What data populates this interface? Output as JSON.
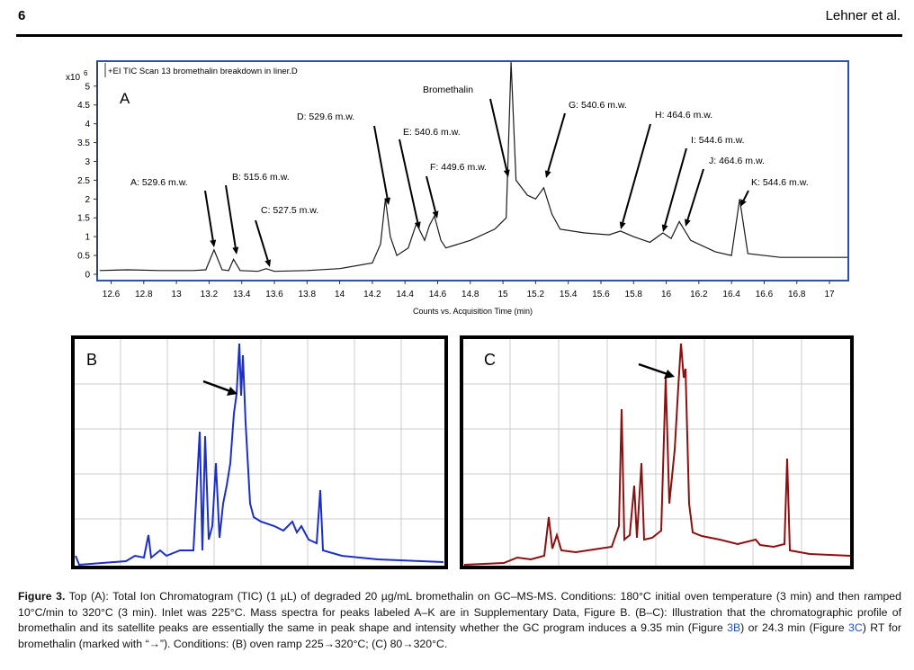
{
  "header": {
    "page": "6",
    "authors": "Lehner et al."
  },
  "chart_data": {
    "type": "line",
    "title": "+EI TIC Scan 13 bromethalin breakdown in liner.D",
    "panel": "A",
    "x_label": "Counts vs. Acquisition Time (min)",
    "y_unit_base": "x10",
    "y_unit_exp": "6",
    "x": [
      12.53,
      12.7,
      12.9,
      13.1,
      13.18,
      13.23,
      13.28,
      13.32,
      13.35,
      13.39,
      13.5,
      13.55,
      13.6,
      13.8,
      14.0,
      14.2,
      14.25,
      14.28,
      14.31,
      14.35,
      14.42,
      14.47,
      14.52,
      14.55,
      14.58,
      14.62,
      14.65,
      14.8,
      14.95,
      15.02,
      15.05,
      15.08,
      15.15,
      15.2,
      15.25,
      15.3,
      15.35,
      15.5,
      15.65,
      15.72,
      15.8,
      15.9,
      15.98,
      16.03,
      16.08,
      16.15,
      16.3,
      16.4,
      16.45,
      16.5,
      16.7,
      16.9,
      17.11
    ],
    "series": [
      {
        "name": "TIC",
        "color": "#1a1a1a",
        "values": [
          0.1,
          0.12,
          0.1,
          0.1,
          0.12,
          0.65,
          0.12,
          0.1,
          0.4,
          0.1,
          0.08,
          0.15,
          0.08,
          0.1,
          0.15,
          0.3,
          0.8,
          2.0,
          1.0,
          0.5,
          0.7,
          1.35,
          0.9,
          1.3,
          1.55,
          0.9,
          0.7,
          0.9,
          1.2,
          1.5,
          5.64,
          2.5,
          2.1,
          2.0,
          2.3,
          1.6,
          1.2,
          1.1,
          1.05,
          1.15,
          1.0,
          0.85,
          1.1,
          0.95,
          1.4,
          0.9,
          0.6,
          0.5,
          2.0,
          0.55,
          0.45,
          0.45,
          0.45
        ]
      }
    ],
    "xlim": [
      12.52,
      17.11
    ],
    "ylim": [
      0,
      5.64
    ],
    "xticks": [
      12.6,
      12.8,
      13,
      13.2,
      13.4,
      13.6,
      13.8,
      14,
      14.2,
      14.4,
      14.6,
      14.8,
      15,
      15.2,
      15.4,
      15.6,
      15.8,
      16,
      16.2,
      16.4,
      16.6,
      16.8,
      17
    ],
    "yticks": [
      0,
      0.5,
      1,
      1.5,
      2,
      2.5,
      3,
      3.5,
      4,
      4.5,
      5
    ],
    "annotations": [
      "A: 529.6 m.w.",
      "B: 515.6 m.w.",
      "C: 527.5 m.w.",
      "D: 529.6 m.w.",
      "E: 540.6 m.w.",
      "F: 449.6 m.w.",
      "Bromethalin",
      "G: 540.6 m.w.",
      "H: 464.6 m.w.",
      "I: 544.6 m.w.",
      "J: 464.6 m.w.",
      "K: 544.6 m.w."
    ]
  },
  "panels": [
    "B",
    "C"
  ],
  "caption": {
    "label": "Figure 3.",
    "parts": [
      " Top (A): Total Ion Chromatogram (TIC) (1 µL) of degraded 20 µg/mL bromethalin on GC–MS-MS. Conditions: 180°C initial oven temperature (3 min) and then ramped 10°C/min to 320°C (3 min). Inlet was 225°C. Mass spectra for peaks labeled A–K are in Supplementary Data, Figure B. (B–C): Illustration that the chromatographic profile of bromethalin and its satellite peaks are essentially the same in peak shape and intensity whether the GC program induces a 9.35 min (Figure ",
      "3B",
      ") or 24.3 min (Figure ",
      "3C",
      ") RT for bromethalin (marked with “→”). Conditions: (B) oven ramp 225→320°C; (C) 80→320°C."
    ]
  }
}
